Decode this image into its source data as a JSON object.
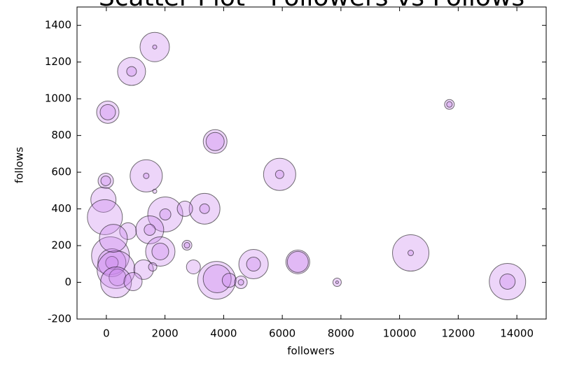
{
  "chart_data": {
    "type": "scatter",
    "title": "Scatter Plot - Followers vs Follows",
    "xlabel": "followers",
    "ylabel": "follows",
    "x": [
      1650,
      1650,
      860,
      860,
      50,
      50,
      11700,
      11700,
      3710,
      3710,
      1360,
      1360,
      1650,
      5910,
      5910,
      -20,
      -20,
      -100,
      -50,
      2010,
      2010,
      3350,
      3350,
      2680,
      740,
      1480,
      1480,
      1840,
      1840,
      2750,
      2750,
      140,
      190,
      190,
      330,
      1270,
      1580,
      2970,
      380,
      330,
      910,
      3760,
      3780,
      4190,
      4590,
      4590,
      5020,
      5020,
      6530,
      6530,
      7870,
      7870,
      10380,
      10380,
      13680,
      13680,
      240
    ],
    "y": [
      1282,
      1282,
      1149,
      1149,
      927,
      927,
      969,
      969,
      767,
      767,
      580,
      580,
      496,
      588,
      588,
      553,
      553,
      450,
      355,
      370,
      370,
      401,
      401,
      401,
      279,
      286,
      286,
      168,
      168,
      202,
      202,
      145,
      107,
      107,
      69,
      69,
      84,
      84,
      27,
      0,
      4,
      11,
      19,
      11,
      0,
      0,
      99,
      99,
      111,
      111,
      0,
      0,
      160,
      160,
      4,
      4,
      240
    ],
    "sizes": [
      441,
      9,
      400,
      49,
      256,
      121,
      49,
      16,
      289,
      169,
      529,
      16,
      9,
      529,
      36,
      121,
      49,
      324,
      625,
      625,
      64,
      484,
      49,
      121,
      144,
      400,
      64,
      441,
      144,
      49,
      16,
      729,
      400,
      81,
      729,
      196,
      36,
      100,
      144,
      484,
      169,
      729,
      400,
      100,
      81,
      16,
      441,
      100,
      289,
      225,
      36,
      4,
      676,
      16,
      676,
      121,
      400
    ],
    "color": "#cc88ee",
    "xlim": [
      -1000,
      15000
    ],
    "ylim": [
      -200,
      1500
    ],
    "xticks": [
      0,
      2000,
      4000,
      6000,
      8000,
      10000,
      12000,
      14000
    ],
    "yticks": [
      -200,
      0,
      200,
      400,
      600,
      800,
      1000,
      1200,
      1400
    ]
  }
}
